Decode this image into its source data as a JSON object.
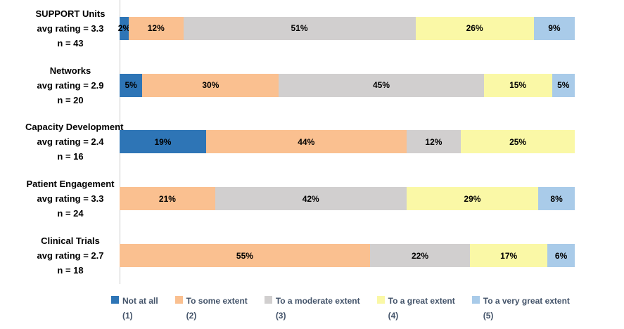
{
  "chart_data": {
    "type": "bar",
    "orientation": "horizontal-stacked",
    "title": "",
    "xlabel": "",
    "ylabel": "",
    "xlim": [
      0,
      100
    ],
    "grid": false,
    "value_suffix": "%",
    "legend_position": "bottom",
    "axis_color": "#C9C9C9",
    "legend_text_color": "#44546A",
    "label_text_color": "#000000",
    "categories": [
      {
        "label": "SUPPORT Units",
        "avg_rating": "avg rating = 3.3",
        "n": "n = 43"
      },
      {
        "label": "Networks",
        "avg_rating": "avg rating = 2.9",
        "n": "n = 20"
      },
      {
        "label": "Capacity Development",
        "avg_rating": "avg rating = 2.4",
        "n": "n = 16"
      },
      {
        "label": "Patient Engagement",
        "avg_rating": "avg rating = 3.3",
        "n": "n = 24"
      },
      {
        "label": "Clinical Trials",
        "avg_rating": "avg rating = 2.7",
        "n": "n = 18"
      }
    ],
    "series": [
      {
        "name": "Not at all",
        "number": "(1)",
        "color": "#2E75B6",
        "values": [
          2,
          5,
          19,
          0,
          0
        ]
      },
      {
        "name": "To some extent",
        "number": "(2)",
        "color": "#FAC090",
        "values": [
          12,
          30,
          44,
          21,
          55
        ]
      },
      {
        "name": "To a moderate extent",
        "number": "(3)",
        "color": "#D1CFCF",
        "values": [
          51,
          45,
          12,
          42,
          22
        ]
      },
      {
        "name": "To a great extent",
        "number": "(4)",
        "color": "#FAF8A6",
        "values": [
          26,
          15,
          25,
          29,
          17
        ]
      },
      {
        "name": "To a very great extent",
        "number": "(5)",
        "color": "#A9CBE9",
        "values": [
          9,
          5,
          0,
          8,
          6
        ]
      }
    ]
  }
}
